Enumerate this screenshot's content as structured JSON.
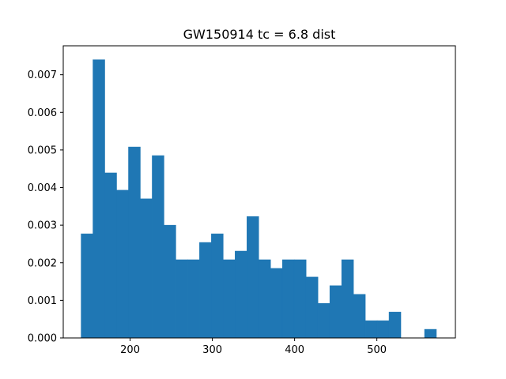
{
  "chart_data": {
    "type": "bar",
    "title": "GW150914 tc = 6.8 dist",
    "xlabel": "",
    "ylabel": "",
    "xlim": [
      118.7,
      595.5
    ],
    "ylim": [
      0,
      0.00777
    ],
    "grid": false,
    "legend": "none",
    "bar_color": "#1f77b4",
    "bin_edges": [
      140.4,
      154.8,
      169.2,
      183.6,
      198.0,
      212.4,
      226.8,
      241.2,
      255.6,
      270.0,
      284.4,
      298.8,
      313.2,
      327.6,
      342.0,
      356.4,
      370.8,
      385.2,
      399.6,
      414.0,
      428.4,
      442.8,
      457.2,
      471.6,
      486.0,
      500.4,
      514.8,
      529.2,
      543.6,
      558.0,
      572.4
    ],
    "values": [
      0.00277,
      0.0074,
      0.00439,
      0.00393,
      0.00508,
      0.0037,
      0.00485,
      0.003,
      0.00208,
      0.00208,
      0.00254,
      0.00277,
      0.00208,
      0.00231,
      0.00323,
      0.00208,
      0.00185,
      0.00208,
      0.00208,
      0.00162,
      0.00092,
      0.00139,
      0.00208,
      0.00116,
      0.00046,
      0.00046,
      0.00069,
      0.0,
      0.0,
      0.00023
    ],
    "x_ticks": [
      200,
      300,
      400,
      500
    ],
    "x_tick_labels": [
      "200",
      "300",
      "400",
      "500"
    ],
    "y_ticks": [
      0,
      0.001,
      0.002,
      0.003,
      0.004,
      0.005,
      0.006,
      0.007
    ],
    "y_tick_labels": [
      "0.000",
      "0.001",
      "0.002",
      "0.003",
      "0.004",
      "0.005",
      "0.006",
      "0.007"
    ]
  }
}
